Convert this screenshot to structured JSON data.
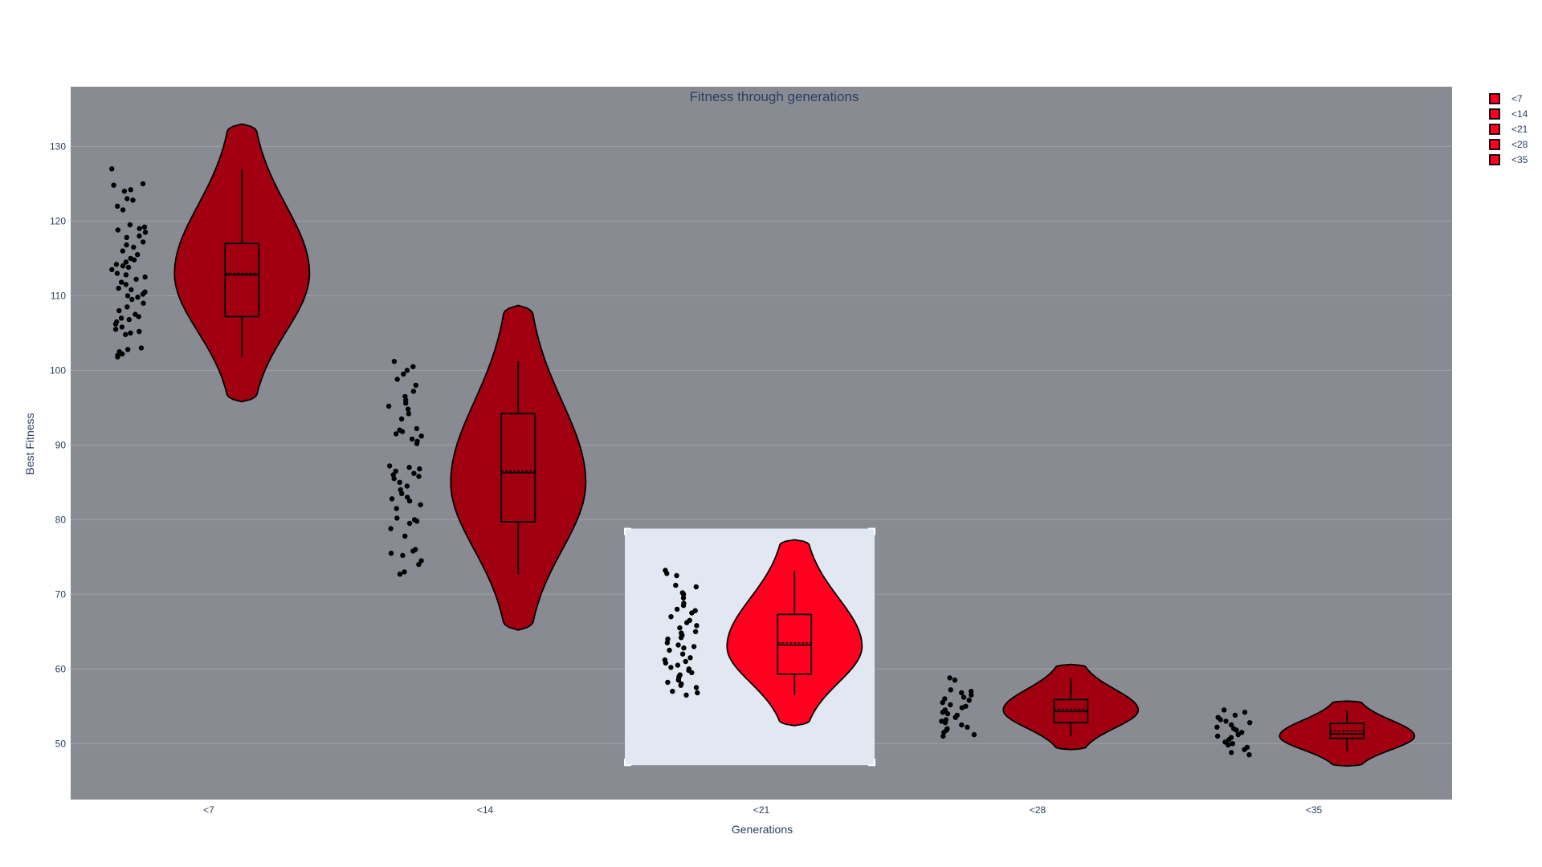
{
  "colors": {
    "background": "#ffffff",
    "plot_background": "#888c92",
    "gridline": "#9da1a6",
    "violin_fill": "#a0000f",
    "violin_highlight_fill": "#ff0020",
    "highlight_box": "#e1e8f2",
    "points": "#000000",
    "text": "#2a3f5f"
  },
  "chart_data": {
    "type": "violin",
    "title": "Fitness through generations",
    "xlabel": "Generations",
    "ylabel": "Best Fitness",
    "ylim": [
      42.5,
      138
    ],
    "yticks": [
      50,
      60,
      70,
      80,
      90,
      100,
      110,
      120,
      130
    ],
    "categories": [
      "<7",
      "<14",
      "<21",
      "<28",
      "<35"
    ],
    "grid": true,
    "legend": {
      "placement": "top-right",
      "entries": [
        "<7",
        "<14",
        "<21",
        "<28",
        "<35"
      ]
    },
    "selected_category": "<21",
    "series": [
      {
        "name": "<7",
        "min": 95.8,
        "q1": 107.2,
        "median": 112.8,
        "mean": 113.0,
        "q3": 117.0,
        "max": 133.0,
        "whisker_low": 101.8,
        "whisker_high": 127.0,
        "mode": 113.0,
        "points": [
          127,
          125,
          124.8,
          124.2,
          124,
          123,
          122.8,
          122,
          121.5,
          119.5,
          119.2,
          119,
          118.8,
          118.5,
          118,
          117.8,
          117.2,
          116.8,
          116.5,
          116,
          115.5,
          115,
          114.8,
          114.5,
          114.2,
          114,
          113.8,
          113.5,
          113,
          112.8,
          112.5,
          112.2,
          111.8,
          111.5,
          111,
          110.8,
          110.5,
          110.2,
          110,
          109.8,
          109.5,
          109,
          108.5,
          108,
          107.5,
          107.2,
          107,
          106.8,
          106.5,
          106.2,
          105.8,
          105.5,
          105.2,
          105,
          104.8,
          103,
          102.8,
          102.5,
          102.2,
          102,
          101.8
        ]
      },
      {
        "name": "<14",
        "min": 65.2,
        "q1": 79.7,
        "median": 86.3,
        "mean": 86.5,
        "q3": 94.2,
        "max": 108.7,
        "whisker_low": 72.7,
        "whisker_high": 101.2,
        "mode": 85.0,
        "points": [
          101.2,
          100.5,
          100,
          99.5,
          98.8,
          98,
          97.2,
          96.5,
          96,
          95.6,
          95.2,
          94.8,
          94.2,
          93.5,
          92.2,
          92,
          91.8,
          91.5,
          91.2,
          90.8,
          90.5,
          90.2,
          87.2,
          87,
          86.8,
          86.5,
          86.2,
          86,
          85.8,
          85.5,
          85,
          84.5,
          84,
          83.5,
          83,
          82.8,
          82.5,
          82,
          81.5,
          80.2,
          80,
          79.8,
          79.5,
          78.8,
          77.8,
          76,
          75.8,
          75.5,
          75.2,
          74.5,
          74,
          73,
          72.7
        ]
      },
      {
        "name": "<21",
        "min": 52.4,
        "q1": 59.3,
        "median": 63.2,
        "mean": 63.5,
        "q3": 67.3,
        "max": 77.3,
        "whisker_low": 56.5,
        "whisker_high": 73.2,
        "mode": 63.0,
        "points": [
          73.2,
          72.8,
          72.5,
          71.2,
          71,
          70.2,
          70,
          69.5,
          68.8,
          68.5,
          68,
          67.8,
          67.5,
          67,
          66.5,
          66.2,
          65.8,
          65.5,
          65,
          64.8,
          64.5,
          64.2,
          64,
          63.5,
          63.2,
          63,
          62.8,
          62.5,
          62,
          61.5,
          61.2,
          61,
          60.8,
          60.5,
          60.2,
          60,
          59.8,
          59.5,
          59.2,
          59,
          58.8,
          58.5,
          58.2,
          58,
          57.8,
          57.5,
          57,
          56.8,
          56.5
        ]
      },
      {
        "name": "<28",
        "min": 49.2,
        "q1": 52.8,
        "median": 54.3,
        "mean": 54.6,
        "q3": 55.9,
        "max": 60.6,
        "whisker_low": 51.0,
        "whisker_high": 58.8,
        "mode": 54.5,
        "points": [
          58.8,
          58.5,
          57.2,
          57,
          56.8,
          56.5,
          56.2,
          56,
          55.8,
          55.5,
          55.2,
          55,
          54.8,
          54.5,
          54.2,
          54,
          53.8,
          53.5,
          53.2,
          53,
          52.8,
          52.5,
          52.2,
          52,
          51.8,
          51.5,
          51.2,
          51
        ]
      },
      {
        "name": "<35",
        "min": 47.0,
        "q1": 50.7,
        "median": 51.3,
        "mean": 51.7,
        "q3": 52.7,
        "max": 55.7,
        "whisker_low": 49.0,
        "whisker_high": 54.4,
        "mode": 51.0,
        "points": [
          54.5,
          54.2,
          53.8,
          53.5,
          53.2,
          53,
          52.8,
          52.5,
          52.2,
          52,
          51.8,
          51.5,
          51.2,
          51,
          50.8,
          50.5,
          50.2,
          50,
          49.8,
          49.5,
          49.2,
          48.8,
          48.5
        ]
      }
    ]
  }
}
